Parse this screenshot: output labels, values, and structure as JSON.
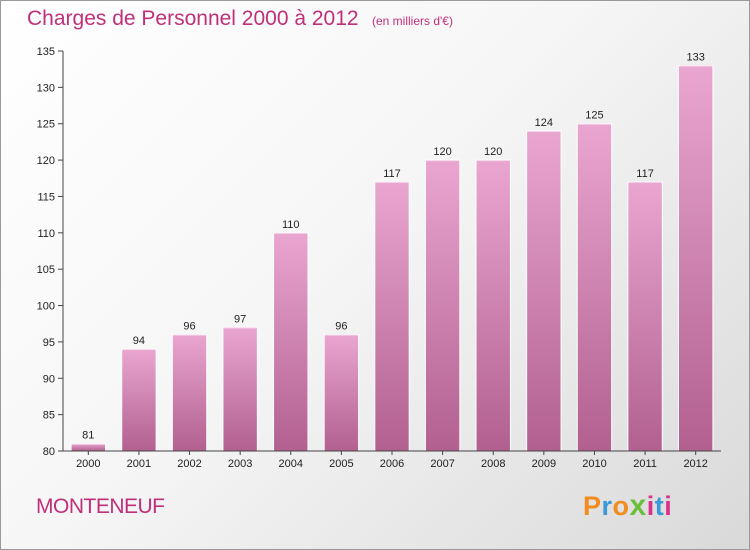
{
  "header": {
    "title": "Charges de Personnel 2000 à 2012",
    "subtitle": "(en milliers d'€)"
  },
  "footer": {
    "town": "MONTENEUF",
    "logo": "Proxiti"
  },
  "colors": {
    "title": "#c0307a",
    "bar_top": "#e9a6d0",
    "bar_bottom": "#b2608f",
    "logo_letters": [
      "#f28c1e",
      "#3a9ad9",
      "#f28c1e",
      "#6bbf3a",
      "#d9328a",
      "#3a9ad9",
      "#d9328a"
    ]
  },
  "chart_data": {
    "type": "bar",
    "categories": [
      "2000",
      "2001",
      "2002",
      "2003",
      "2004",
      "2005",
      "2006",
      "2007",
      "2008",
      "2009",
      "2010",
      "2011",
      "2012"
    ],
    "values": [
      81,
      94,
      96,
      97,
      110,
      96,
      117,
      120,
      120,
      124,
      125,
      117,
      133
    ],
    "ylim": [
      80,
      135
    ],
    "yticks": [
      80,
      85,
      90,
      95,
      100,
      105,
      110,
      115,
      120,
      125,
      130,
      135
    ],
    "grid": false,
    "legend": "none"
  }
}
